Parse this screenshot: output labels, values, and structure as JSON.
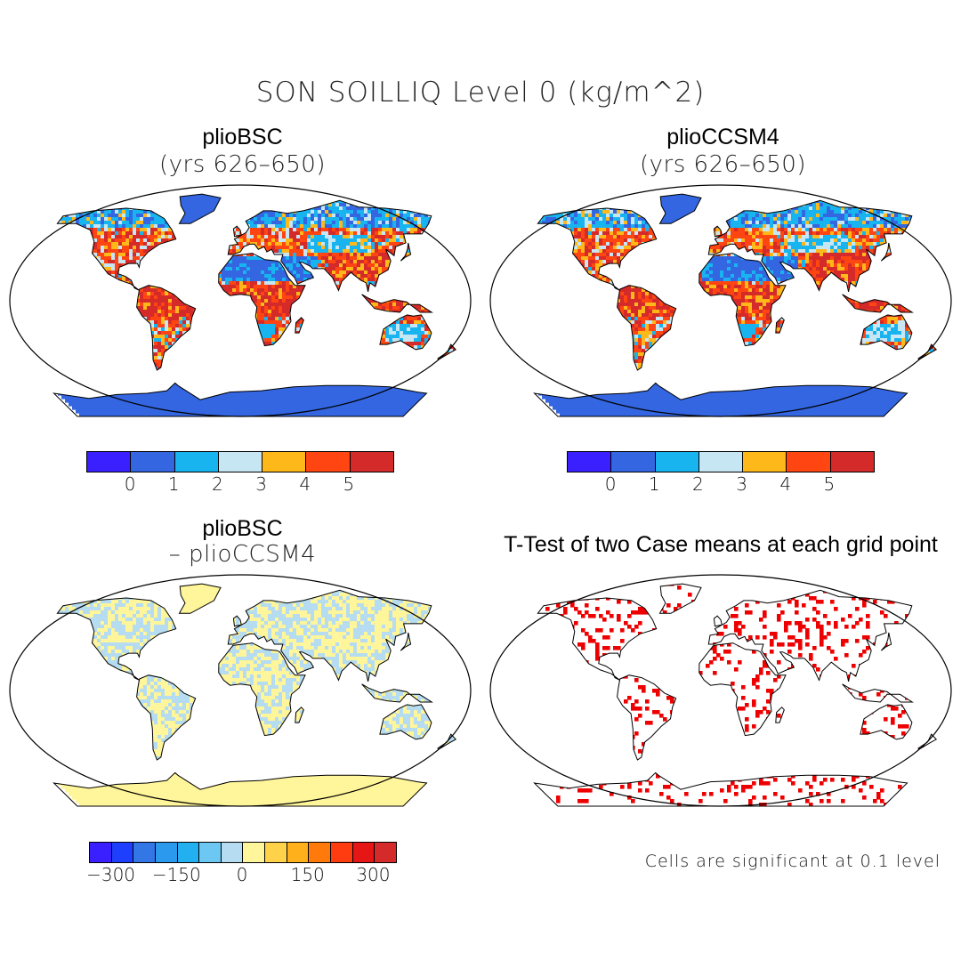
{
  "figure": {
    "title": "SON SOILLIQ Level 0 (kg/m^2)"
  },
  "panels": [
    {
      "title": "plioBSC",
      "subtitle": "(yrs 626–650)",
      "field": "abs"
    },
    {
      "title": "plioCCSM4",
      "subtitle": "(yrs 626–650)",
      "field": "abs"
    },
    {
      "title": "plioBSC",
      "subtitle": "– plioCCSM4",
      "field": "diff"
    },
    {
      "title": "T-Test of two Case means at each grid point",
      "subtitle": "",
      "field": "sig"
    }
  ],
  "colorbars": {
    "abs": {
      "colors": [
        "#3a1fff",
        "#3366e0",
        "#18b4f0",
        "#c7e6f4",
        "#ffb81a",
        "#ff4512",
        "#d42a2a"
      ],
      "ticks": [
        "0",
        "1",
        "2",
        "3",
        "4",
        "5"
      ]
    },
    "diff": {
      "colors": [
        "#3a1fff",
        "#1f3fff",
        "#3377e6",
        "#2a99ee",
        "#22b0f0",
        "#6cc8f2",
        "#b5dcf0",
        "#fff59a",
        "#ffd24a",
        "#ffb01a",
        "#ff7a0a",
        "#ff3c10",
        "#e61616",
        "#d42a2a"
      ],
      "ticks": [
        "−300",
        "−150",
        "0",
        "150",
        "300"
      ]
    }
  },
  "significance_note": "Cells are significant at 0.1 level",
  "significance_color": "#ee0000"
}
